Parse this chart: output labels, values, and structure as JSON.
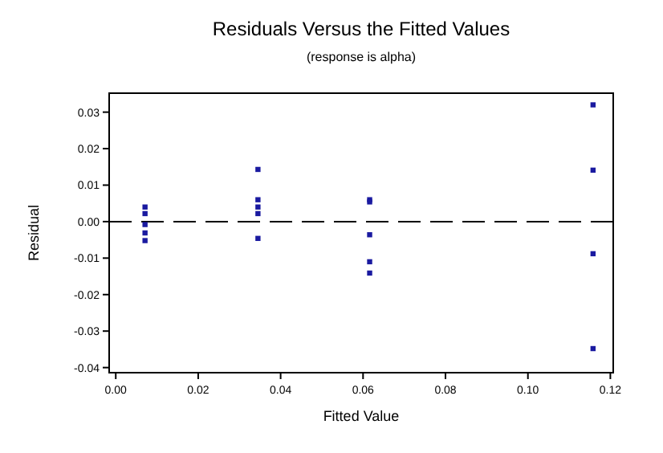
{
  "chart_data": {
    "type": "scatter",
    "title": "Residuals Versus the Fitted Values",
    "subtitle": "(response is alpha)",
    "xlabel": "Fitted Value",
    "ylabel": "Residual",
    "series": [
      {
        "color": "#1a1aa0",
        "x": [
          0.0071,
          0.0071,
          0.0071,
          0.0071,
          0.0071,
          0.0345,
          0.0345,
          0.0345,
          0.0345,
          0.0345,
          0.0616,
          0.0616,
          0.0616,
          0.0616,
          0.0616,
          0.1158,
          0.1158,
          0.1158,
          0.1158
        ],
        "values": [
          0.004,
          0.0022,
          -0.0008,
          -0.0031,
          -0.0052,
          0.0143,
          0.006,
          0.004,
          0.0022,
          -0.0046,
          0.006,
          0.0054,
          -0.0036,
          -0.011,
          -0.0141,
          0.032,
          0.0141,
          -0.0088,
          -0.0348
        ]
      }
    ],
    "xlim": [
      -0.0016,
      0.1207
    ],
    "xticks": [
      {
        "value": 0,
        "label": "0.00"
      },
      {
        "value": 0.02,
        "label": "0.02"
      },
      {
        "value": 0.04,
        "label": "0.04"
      },
      {
        "value": 0.06,
        "label": "0.06"
      },
      {
        "value": 0.08,
        "label": "0.08"
      },
      {
        "value": 0.1,
        "label": "0.10"
      },
      {
        "value": 0.12,
        "label": "0.12"
      }
    ],
    "ylim": [
      -0.0414,
      0.0352
    ],
    "yticks": [
      {
        "value": -0.04,
        "label": "-0.04"
      },
      {
        "value": -0.03,
        "label": "-0.03"
      },
      {
        "value": -0.02,
        "label": "-0.02"
      },
      {
        "value": -0.01,
        "label": "-0.01"
      },
      {
        "value": 0,
        "label": "0.00"
      },
      {
        "value": 0.01,
        "label": "0.01"
      },
      {
        "value": 0.02,
        "label": "0.02"
      },
      {
        "value": 0.03,
        "label": "0.03"
      }
    ],
    "ref_lines": [
      {
        "axis": "y",
        "value": 0,
        "color": "#000000",
        "line_style": "dashed"
      }
    ],
    "marker": "square",
    "grid": false
  }
}
